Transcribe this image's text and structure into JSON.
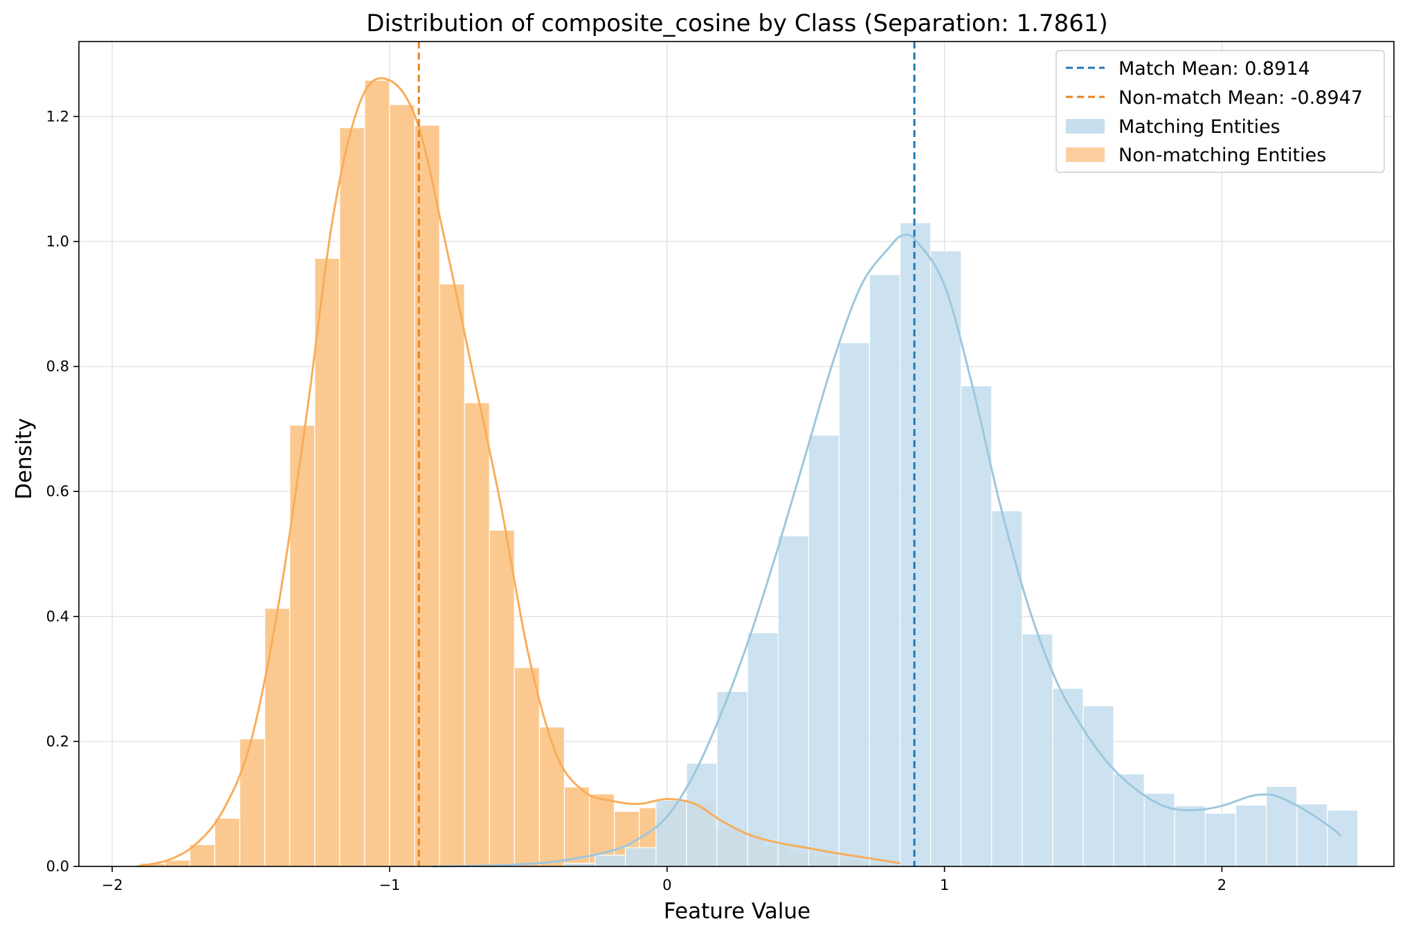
{
  "chart_data": {
    "type": "histogram",
    "title": "Distribution of composite_cosine by Class (Separation: 1.7861)",
    "xlabel": "Feature Value",
    "ylabel": "Density",
    "xlim": [
      -2.12,
      2.62
    ],
    "ylim": [
      0,
      1.32
    ],
    "xticks": [
      -2,
      -1,
      0,
      1,
      2
    ],
    "xtick_labels": [
      "−2",
      "−1",
      "0",
      "1",
      "2"
    ],
    "yticks": [
      0.0,
      0.2,
      0.4,
      0.6,
      0.8,
      1.0,
      1.2
    ],
    "ytick_labels": [
      "0.0",
      "0.2",
      "0.4",
      "0.6",
      "0.8",
      "1.0",
      "1.2"
    ],
    "grid": true,
    "legend_position": "top-right",
    "legend": [
      {
        "label": "Match Mean: 0.8914",
        "kind": "dashed-line",
        "color": "#1f77b4"
      },
      {
        "label": "Non-match Mean: -0.8947",
        "kind": "dashed-line",
        "color": "#e6811e"
      },
      {
        "label": "Matching Entities",
        "kind": "patch",
        "color": "#c6dfee"
      },
      {
        "label": "Non-matching Entities",
        "kind": "patch",
        "color": "#fcd09e"
      }
    ],
    "mean_lines": [
      {
        "series": "Matching Entities",
        "x": 0.8914,
        "color": "#1f77b4"
      },
      {
        "series": "Non-matching Entities",
        "x": -0.8947,
        "color": "#e6811e"
      }
    ],
    "series": [
      {
        "name": "Non-matching Entities",
        "color": "#fbc98f",
        "kde_color": "#f8ad5a",
        "bins": [
          {
            "x0": -1.9,
            "x1": -1.81,
            "density": 0.005
          },
          {
            "x0": -1.81,
            "x1": -1.72,
            "density": 0.01
          },
          {
            "x0": -1.72,
            "x1": -1.63,
            "density": 0.035
          },
          {
            "x0": -1.63,
            "x1": -1.54,
            "density": 0.077
          },
          {
            "x0": -1.54,
            "x1": -1.45,
            "density": 0.204
          },
          {
            "x0": -1.45,
            "x1": -1.36,
            "density": 0.413
          },
          {
            "x0": -1.36,
            "x1": -1.27,
            "density": 0.706
          },
          {
            "x0": -1.27,
            "x1": -1.18,
            "density": 0.973
          },
          {
            "x0": -1.18,
            "x1": -1.09,
            "density": 1.182
          },
          {
            "x0": -1.09,
            "x1": -1.0,
            "density": 1.258
          },
          {
            "x0": -1.0,
            "x1": -0.91,
            "density": 1.219
          },
          {
            "x0": -0.91,
            "x1": -0.82,
            "density": 1.186
          },
          {
            "x0": -0.82,
            "x1": -0.73,
            "density": 0.932
          },
          {
            "x0": -0.73,
            "x1": -0.64,
            "density": 0.742
          },
          {
            "x0": -0.64,
            "x1": -0.55,
            "density": 0.538
          },
          {
            "x0": -0.55,
            "x1": -0.46,
            "density": 0.318
          },
          {
            "x0": -0.46,
            "x1": -0.37,
            "density": 0.223
          },
          {
            "x0": -0.37,
            "x1": -0.28,
            "density": 0.127
          },
          {
            "x0": -0.28,
            "x1": -0.19,
            "density": 0.116
          },
          {
            "x0": -0.19,
            "x1": -0.1,
            "density": 0.088
          },
          {
            "x0": -0.1,
            "x1": -0.01,
            "density": 0.094
          },
          {
            "x0": -0.01,
            "x1": 0.08,
            "density": 0.105
          },
          {
            "x0": 0.08,
            "x1": 0.17,
            "density": 0.105
          },
          {
            "x0": 0.17,
            "x1": 0.26,
            "density": 0.061
          },
          {
            "x0": 0.26,
            "x1": 0.35,
            "density": 0.055
          },
          {
            "x0": 0.35,
            "x1": 0.44,
            "density": 0.033
          },
          {
            "x0": 0.44,
            "x1": 0.53,
            "density": 0.022
          },
          {
            "x0": 0.53,
            "x1": 0.62,
            "density": 0.017
          },
          {
            "x0": 0.62,
            "x1": 0.71,
            "density": 0.011
          },
          {
            "x0": 0.71,
            "x1": 0.8,
            "density": 0.006
          }
        ],
        "kde": [
          [
            -1.91,
            0.0
          ],
          [
            -1.8,
            0.01
          ],
          [
            -1.7,
            0.035
          ],
          [
            -1.6,
            0.09
          ],
          [
            -1.5,
            0.2
          ],
          [
            -1.4,
            0.42
          ],
          [
            -1.3,
            0.72
          ],
          [
            -1.2,
            1.05
          ],
          [
            -1.1,
            1.23
          ],
          [
            -1.0,
            1.258
          ],
          [
            -0.9,
            1.19
          ],
          [
            -0.8,
            1.0
          ],
          [
            -0.7,
            0.79
          ],
          [
            -0.6,
            0.58
          ],
          [
            -0.5,
            0.34
          ],
          [
            -0.4,
            0.18
          ],
          [
            -0.3,
            0.12
          ],
          [
            -0.2,
            0.105
          ],
          [
            -0.1,
            0.1
          ],
          [
            0.0,
            0.108
          ],
          [
            0.1,
            0.1
          ],
          [
            0.2,
            0.072
          ],
          [
            0.3,
            0.05
          ],
          [
            0.4,
            0.038
          ],
          [
            0.5,
            0.03
          ],
          [
            0.6,
            0.022
          ],
          [
            0.7,
            0.015
          ],
          [
            0.8,
            0.008
          ],
          [
            0.84,
            0.005
          ]
        ]
      },
      {
        "name": "Matching Entities",
        "color": "#c6dfee",
        "kde_color": "#9dc7df",
        "bins": [
          {
            "x0": -0.37,
            "x1": -0.26,
            "density": 0.005
          },
          {
            "x0": -0.26,
            "x1": -0.15,
            "density": 0.018
          },
          {
            "x0": -0.15,
            "x1": -0.04,
            "density": 0.03
          },
          {
            "x0": -0.04,
            "x1": 0.07,
            "density": 0.106
          },
          {
            "x0": 0.07,
            "x1": 0.18,
            "density": 0.165
          },
          {
            "x0": 0.18,
            "x1": 0.29,
            "density": 0.28
          },
          {
            "x0": 0.29,
            "x1": 0.4,
            "density": 0.374
          },
          {
            "x0": 0.4,
            "x1": 0.51,
            "density": 0.529
          },
          {
            "x0": 0.51,
            "x1": 0.62,
            "density": 0.69
          },
          {
            "x0": 0.62,
            "x1": 0.73,
            "density": 0.838
          },
          {
            "x0": 0.73,
            "x1": 0.84,
            "density": 0.947
          },
          {
            "x0": 0.84,
            "x1": 0.95,
            "density": 1.03
          },
          {
            "x0": 0.95,
            "x1": 1.06,
            "density": 0.985
          },
          {
            "x0": 1.06,
            "x1": 1.17,
            "density": 0.769
          },
          {
            "x0": 1.17,
            "x1": 1.28,
            "density": 0.569
          },
          {
            "x0": 1.28,
            "x1": 1.39,
            "density": 0.372
          },
          {
            "x0": 1.39,
            "x1": 1.5,
            "density": 0.285
          },
          {
            "x0": 1.5,
            "x1": 1.61,
            "density": 0.257
          },
          {
            "x0": 1.61,
            "x1": 1.72,
            "density": 0.148
          },
          {
            "x0": 1.72,
            "x1": 1.83,
            "density": 0.117
          },
          {
            "x0": 1.83,
            "x1": 1.94,
            "density": 0.097
          },
          {
            "x0": 1.94,
            "x1": 2.05,
            "density": 0.085
          },
          {
            "x0": 2.05,
            "x1": 2.16,
            "density": 0.098
          },
          {
            "x0": 2.16,
            "x1": 2.27,
            "density": 0.128
          },
          {
            "x0": 2.27,
            "x1": 2.38,
            "density": 0.1
          },
          {
            "x0": 2.38,
            "x1": 2.49,
            "density": 0.09
          }
        ],
        "kde": [
          [
            -0.85,
            0.0
          ],
          [
            -0.6,
            0.002
          ],
          [
            -0.4,
            0.008
          ],
          [
            -0.2,
            0.025
          ],
          [
            -0.1,
            0.045
          ],
          [
            0.0,
            0.08
          ],
          [
            0.1,
            0.15
          ],
          [
            0.2,
            0.25
          ],
          [
            0.3,
            0.37
          ],
          [
            0.4,
            0.51
          ],
          [
            0.5,
            0.66
          ],
          [
            0.6,
            0.81
          ],
          [
            0.7,
            0.93
          ],
          [
            0.8,
            0.99
          ],
          [
            0.85,
            1.01
          ],
          [
            0.9,
            1.0
          ],
          [
            1.0,
            0.93
          ],
          [
            1.1,
            0.77
          ],
          [
            1.2,
            0.58
          ],
          [
            1.3,
            0.42
          ],
          [
            1.4,
            0.3
          ],
          [
            1.5,
            0.22
          ],
          [
            1.6,
            0.16
          ],
          [
            1.7,
            0.12
          ],
          [
            1.8,
            0.095
          ],
          [
            1.9,
            0.09
          ],
          [
            2.0,
            0.097
          ],
          [
            2.1,
            0.112
          ],
          [
            2.15,
            0.115
          ],
          [
            2.2,
            0.112
          ],
          [
            2.3,
            0.09
          ],
          [
            2.4,
            0.06
          ],
          [
            2.43,
            0.048
          ]
        ]
      }
    ]
  }
}
